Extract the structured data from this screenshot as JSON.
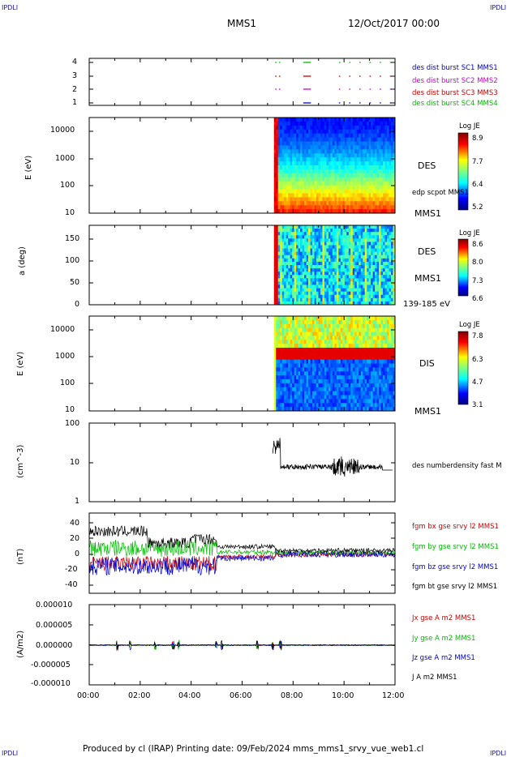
{
  "corners": {
    "tl": "IPDLI",
    "tr": "IPDLI",
    "bl": "IPDLI",
    "br": "IPDLI"
  },
  "header": {
    "spacecraft": "MMS1",
    "date": "12/Oct/2017 00:00"
  },
  "footer": {
    "text": "Produced by cl (IRAP)   Printing date: 09/Feb/2024   mms_mms1_srvy_vue_web1.cl"
  },
  "colors": {
    "mms1": "#0000cc",
    "mms2": "#cc00cc",
    "mms3": "#cc0000",
    "mms4": "#00bb00",
    "black": "#000000"
  },
  "chart_data": [
    {
      "type": "scatter",
      "panel": "availability",
      "yticks": [
        "4",
        "3",
        "2",
        "1"
      ],
      "legend": [
        {
          "label": "des dist burst SC1 MMS1",
          "color": "#0000cc"
        },
        {
          "label": "des dist burst SC2 MMS2",
          "color": "#cc00cc"
        },
        {
          "label": "des dist burst SC3 MMS3",
          "color": "#cc0000"
        },
        {
          "label": "des dist burst SC4 MMS4",
          "color": "#00bb00"
        }
      ]
    },
    {
      "type": "heatmap",
      "panel": "des-energy",
      "ylabel": "E (eV)",
      "yticks": [
        "10000",
        "1000",
        "100",
        "10"
      ],
      "right_labels": [
        "DES",
        "edp scpot MMS1",
        "MMS1"
      ],
      "colorbar": {
        "title": "Log JE",
        "ticks": [
          "8.9",
          "7.7",
          "6.4",
          "5.2"
        ]
      }
    },
    {
      "type": "heatmap",
      "panel": "des-pitch",
      "ylabel": "a (deg)",
      "yticks": [
        "150",
        "100",
        "50",
        "0"
      ],
      "right_labels": [
        "DES",
        "MMS1",
        "139-185 eV"
      ],
      "colorbar": {
        "title": "Log JE",
        "ticks": [
          "8.6",
          "8.0",
          "7.3",
          "6.6"
        ]
      }
    },
    {
      "type": "heatmap",
      "panel": "dis-energy",
      "ylabel": "E (eV)",
      "yticks": [
        "10000",
        "1000",
        "100",
        "10"
      ],
      "right_labels": [
        "DIS",
        "MMS1"
      ],
      "colorbar": {
        "title": "Log JE",
        "ticks": [
          "7.8",
          "6.3",
          "4.7",
          "3.1"
        ]
      }
    },
    {
      "type": "line",
      "panel": "density",
      "ylabel": "(cm^-3)",
      "yticks": [
        "100",
        "10",
        "1"
      ],
      "series": [
        {
          "name": "des numberdensity fast M",
          "color": "#000000"
        }
      ]
    },
    {
      "type": "line",
      "panel": "fgm",
      "ylabel": "(nT)",
      "yticks": [
        "40",
        "20",
        "0",
        "-20",
        "-40"
      ],
      "ylim": [
        -45,
        45
      ],
      "series": [
        {
          "name": "fgm bx gse srvy l2 MMS1",
          "color": "#cc0000"
        },
        {
          "name": "fgm by gse srvy l2 MMS1",
          "color": "#00bb00"
        },
        {
          "name": "fgm bz gse srvy l2 MMS1",
          "color": "#0000cc"
        },
        {
          "name": "fgm bt gse srvy l2 MMS1",
          "color": "#000000"
        }
      ]
    },
    {
      "type": "line",
      "panel": "current",
      "ylabel": "(A/m2)",
      "yticks": [
        "0.000010",
        "0.000005",
        "0.000000",
        "-0.000005",
        "-0.000010"
      ],
      "ylim": [
        -1e-05,
        1e-05
      ],
      "series": [
        {
          "name": "Jx gse A m2 MMS1",
          "color": "#cc0000"
        },
        {
          "name": "Jy gse A m2 MMS1",
          "color": "#00bb00"
        },
        {
          "name": "Jz gse A m2 MMS1",
          "color": "#0000cc"
        },
        {
          "name": "J A m2 MMS1",
          "color": "#000000"
        }
      ]
    }
  ],
  "xaxis": {
    "ticks": [
      "00:00",
      "02:00",
      "04:00",
      "06:00",
      "08:00",
      "10:00",
      "12:00"
    ]
  }
}
